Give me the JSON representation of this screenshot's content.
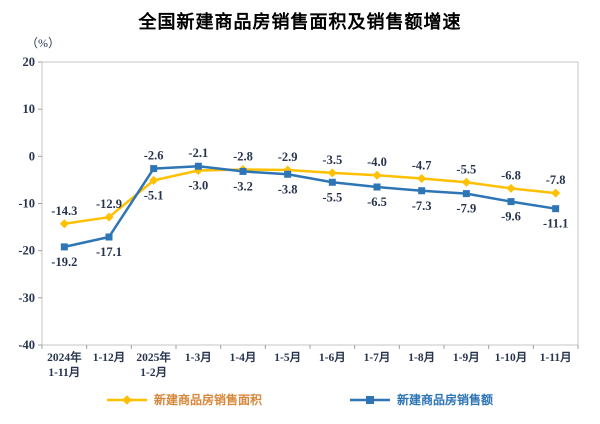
{
  "title": "全国新建商品房销售面积及销售额增速",
  "unit_label": "（%）",
  "chart_data": {
    "type": "line",
    "title": "全国新建商品房销售面积及销售额增速",
    "ylabel": "（%）",
    "xlabel": "",
    "categories": [
      "2024年\n1-11月",
      "1-12月",
      "2025年\n1-2月",
      "1-3月",
      "1-4月",
      "1-5月",
      "1-6月",
      "1-7月",
      "1-8月",
      "1-9月",
      "1-10月",
      "1-11月"
    ],
    "series": [
      {
        "name": "新建商品房销售面积",
        "marker": "diamond",
        "line_color": "#FFC000",
        "legend_text_color": "#D7883C",
        "values": [
          -14.3,
          -12.9,
          -5.1,
          -3.0,
          -2.8,
          -2.9,
          -3.5,
          -4.0,
          -4.7,
          -5.5,
          -6.8,
          -7.8
        ]
      },
      {
        "name": "新建商品房销售额",
        "marker": "square",
        "line_color": "#2E75B6",
        "legend_text_color": "#2E75B6",
        "values": [
          -19.2,
          -17.1,
          -2.6,
          -2.1,
          -3.2,
          -3.8,
          -5.5,
          -6.5,
          -7.3,
          -7.9,
          -9.6,
          -11.1
        ]
      }
    ],
    "ylim": [
      -40,
      20
    ],
    "ytick_step": 10,
    "yticks": [
      20,
      10,
      0,
      -10,
      -20,
      -30,
      -40
    ],
    "grid": false,
    "legend_position": "bottom",
    "data_labels": true,
    "label_text_color": "#27344e",
    "plot_border_color": "#c6c6c6",
    "tick_color": "#a0a0a0"
  }
}
